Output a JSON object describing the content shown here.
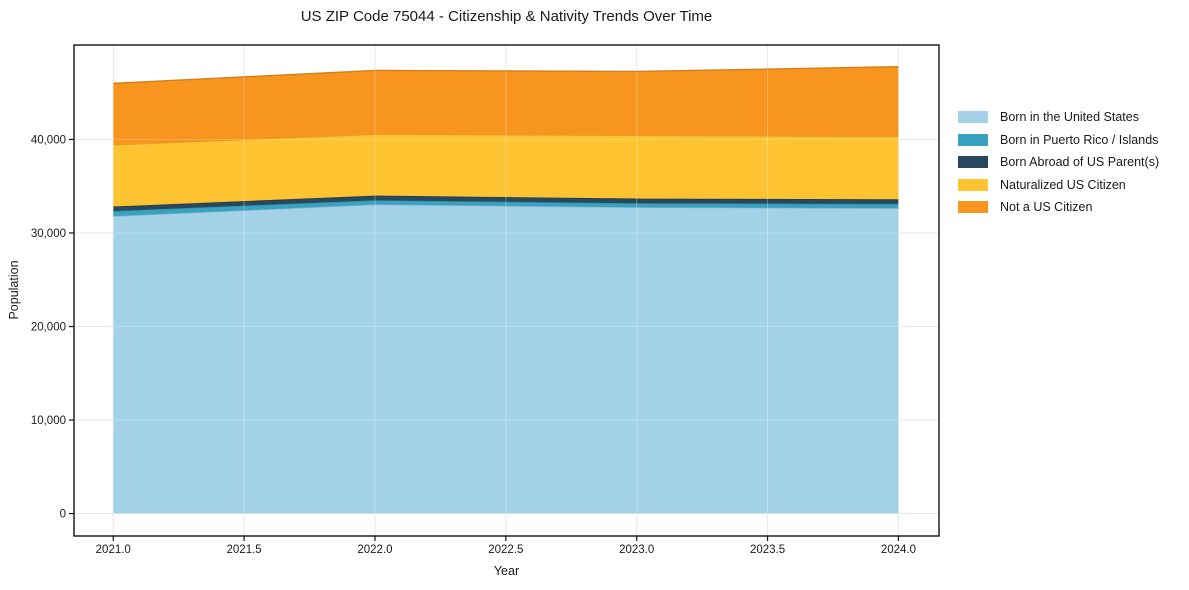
{
  "chart_data": {
    "type": "area",
    "stacked": true,
    "title": "US ZIP Code 75044 - Citizenship & Nativity Trends Over Time",
    "xlabel": "Year",
    "ylabel": "Population",
    "x": [
      2021,
      2022,
      2023,
      2024
    ],
    "series": [
      {
        "name": "Born in the United States",
        "color": "#a3d2e8",
        "values": [
          31800,
          33050,
          32750,
          32650
        ]
      },
      {
        "name": "Born in Puerto Rico / Islands",
        "color": "#3aa2c1",
        "values": [
          550,
          450,
          430,
          460
        ]
      },
      {
        "name": "Born Abroad of US Parent(s)",
        "color": "#27485d",
        "values": [
          480,
          500,
          500,
          500
        ]
      },
      {
        "name": "Naturalized US Citizen",
        "color": "#fdc330",
        "values": [
          6600,
          6550,
          6760,
          6700
        ]
      },
      {
        "name": "Not a US Citizen",
        "color": "#f8951f",
        "values": [
          6570,
          6830,
          6830,
          7470
        ]
      }
    ],
    "x_ticks": [
      {
        "value": 2021.0,
        "label": "2021.0"
      },
      {
        "value": 2021.5,
        "label": "2021.5"
      },
      {
        "value": 2022.0,
        "label": "2022.0"
      },
      {
        "value": 2022.5,
        "label": "2022.5"
      },
      {
        "value": 2023.0,
        "label": "2023.0"
      },
      {
        "value": 2023.5,
        "label": "2023.5"
      },
      {
        "value": 2024.0,
        "label": "2024.0"
      }
    ],
    "y_ticks": [
      {
        "value": 0,
        "label": "0"
      },
      {
        "value": 10000,
        "label": "10,000"
      },
      {
        "value": 20000,
        "label": "20,000"
      },
      {
        "value": 30000,
        "label": "30,000"
      },
      {
        "value": 40000,
        "label": "40,000"
      }
    ],
    "xlim": [
      2020.85,
      2024.155
    ],
    "ylim": [
      -2400,
      50100
    ],
    "grid": true,
    "legend_position": "right",
    "frame_color": "#000000",
    "grid_color": "#e7e7e7"
  }
}
